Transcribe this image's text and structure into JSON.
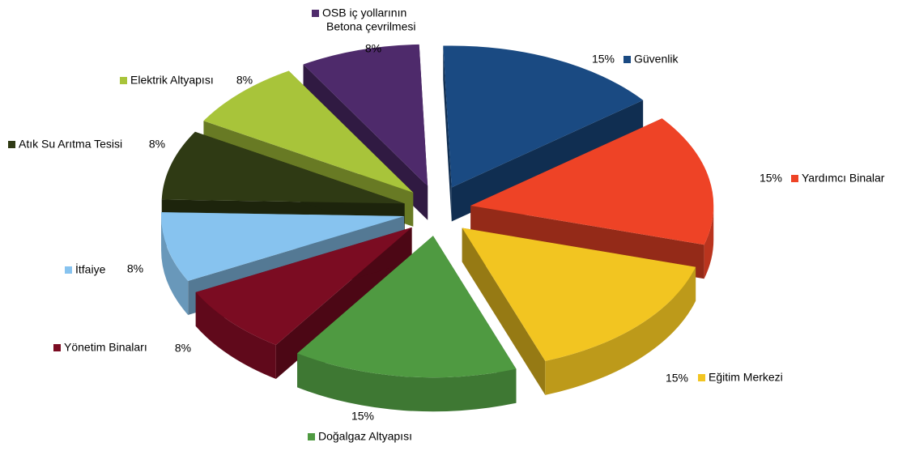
{
  "chart_data": {
    "type": "pie",
    "title": "",
    "exploded": true,
    "three_d": true,
    "slices": [
      {
        "label": "Güvenlik",
        "value": 15,
        "value_label": "15%",
        "color": "#1a4a82",
        "icon": "legend-square"
      },
      {
        "label": "Yardımcı Binalar",
        "value": 15,
        "value_label": "15%",
        "color": "#ee4326",
        "icon": "legend-square"
      },
      {
        "label": "Eğitim Merkezi",
        "value": 15,
        "value_label": "15%",
        "color": "#f2c521",
        "icon": "legend-square"
      },
      {
        "label": "Doğalgaz Altyapısı",
        "value": 15,
        "value_label": "15%",
        "color": "#4f9a41",
        "icon": "legend-square"
      },
      {
        "label": "Yönetim Binaları",
        "value": 8,
        "value_label": "8%",
        "color": "#7b0c22",
        "icon": "legend-square"
      },
      {
        "label": "İtfaiye",
        "value": 8,
        "value_label": "8%",
        "color": "#87c3ef",
        "icon": "legend-square"
      },
      {
        "label": "Atık Su Arıtma Tesisi",
        "value": 8,
        "value_label": "8%",
        "color": "#2f3a14",
        "icon": "legend-square"
      },
      {
        "label": "Elektrik Altyapısı",
        "value": 8,
        "value_label": "8%",
        "color": "#a8c43a",
        "icon": "legend-square"
      },
      {
        "label": "OSB iç yollarının Betona çevrilmesi",
        "label_lines": [
          "OSB iç yollarının",
          "Betona çevrilmesi"
        ],
        "value": 8,
        "value_label": "8%",
        "color": "#4e2a6b",
        "icon": "legend-square"
      }
    ]
  }
}
